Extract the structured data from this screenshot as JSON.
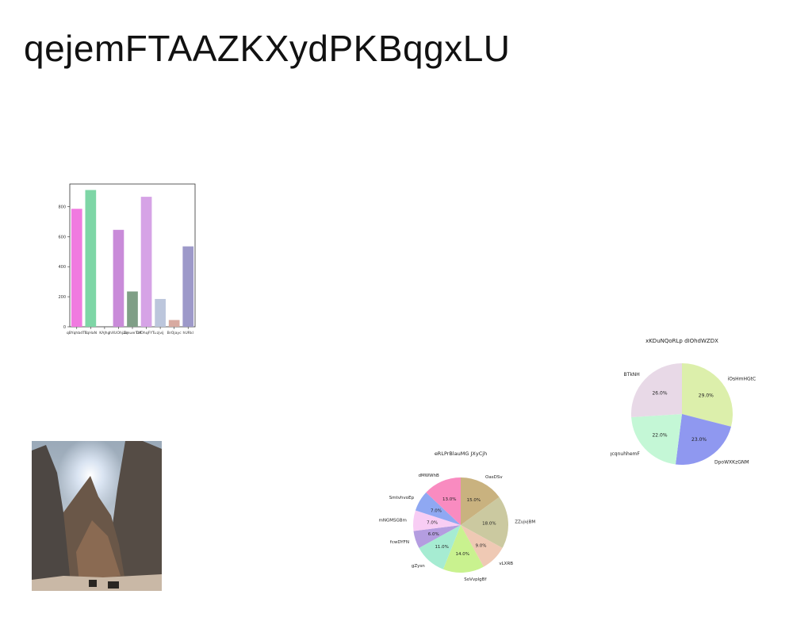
{
  "page": {
    "title": "qejemFTAAZKXydPKBqgxLU"
  },
  "chart_data": [
    {
      "type": "bar",
      "title": "",
      "xlabel": "",
      "ylabel": "",
      "categories": [
        "qBYqhbdTk",
        "TqHaN",
        "KAJhg",
        "hXUOhjaq",
        "ZmuerTxf",
        "DfOhqFYTu",
        "zjvij",
        "BrOjayc",
        "hURkl"
      ],
      "values": [
        785,
        910,
        0,
        645,
        235,
        865,
        185,
        45,
        535
      ],
      "colors": [
        "#f07ae0",
        "#7ed6a6",
        "#9ab0d8",
        "#c98bd9",
        "#7f9f86",
        "#d6a3e6",
        "#bcc6dc",
        "#d8aaa0",
        "#9d99c9"
      ],
      "ylim": [
        0,
        950
      ],
      "yticks": [
        0,
        200,
        400,
        600,
        800
      ]
    },
    {
      "type": "pie",
      "title": "xKDuNQoRLp dIOhdWZDX",
      "labels": [
        "iOsHmHGtC",
        "DpoWXKzGNM",
        "gcqnuhhemF",
        "BTkNH"
      ],
      "values": [
        29.0,
        23.0,
        22.0,
        26.0
      ],
      "pct_labels": [
        "29.0%",
        "23.0%",
        "22.0%",
        "26.0%"
      ],
      "colors": [
        "#dcefab",
        "#8f98f0",
        "#c4f7d6",
        "#e8d9e7"
      ]
    },
    {
      "type": "pie",
      "title": "eRLPrBlauMG JXyCjh",
      "labels": [
        "OasDSv",
        "ZZujvjBM",
        "vLXRB",
        "SoVvplgBf",
        "gZysn",
        "fcwDYFN",
        "mNGMSGBm",
        "SmtvhvoEp",
        "dMWWhB"
      ],
      "values": [
        15.0,
        18.0,
        9.0,
        14.0,
        11.0,
        6.0,
        7.0,
        7.0,
        13.0
      ],
      "pct_labels": [
        "15.0%",
        "18.0%",
        "9.0%",
        "14.0%",
        "11.0%",
        "6.0%",
        "7.0%",
        "7.0%",
        "13.0%"
      ],
      "colors": [
        "#c9b27f",
        "#cbc9a0",
        "#efc9b4",
        "#c9f28f",
        "#a6ecd2",
        "#b49de0",
        "#f8cdf4",
        "#8fa8f2",
        "#f98bc0"
      ]
    }
  ],
  "image": {
    "icon": "mountain-photo-icon"
  }
}
